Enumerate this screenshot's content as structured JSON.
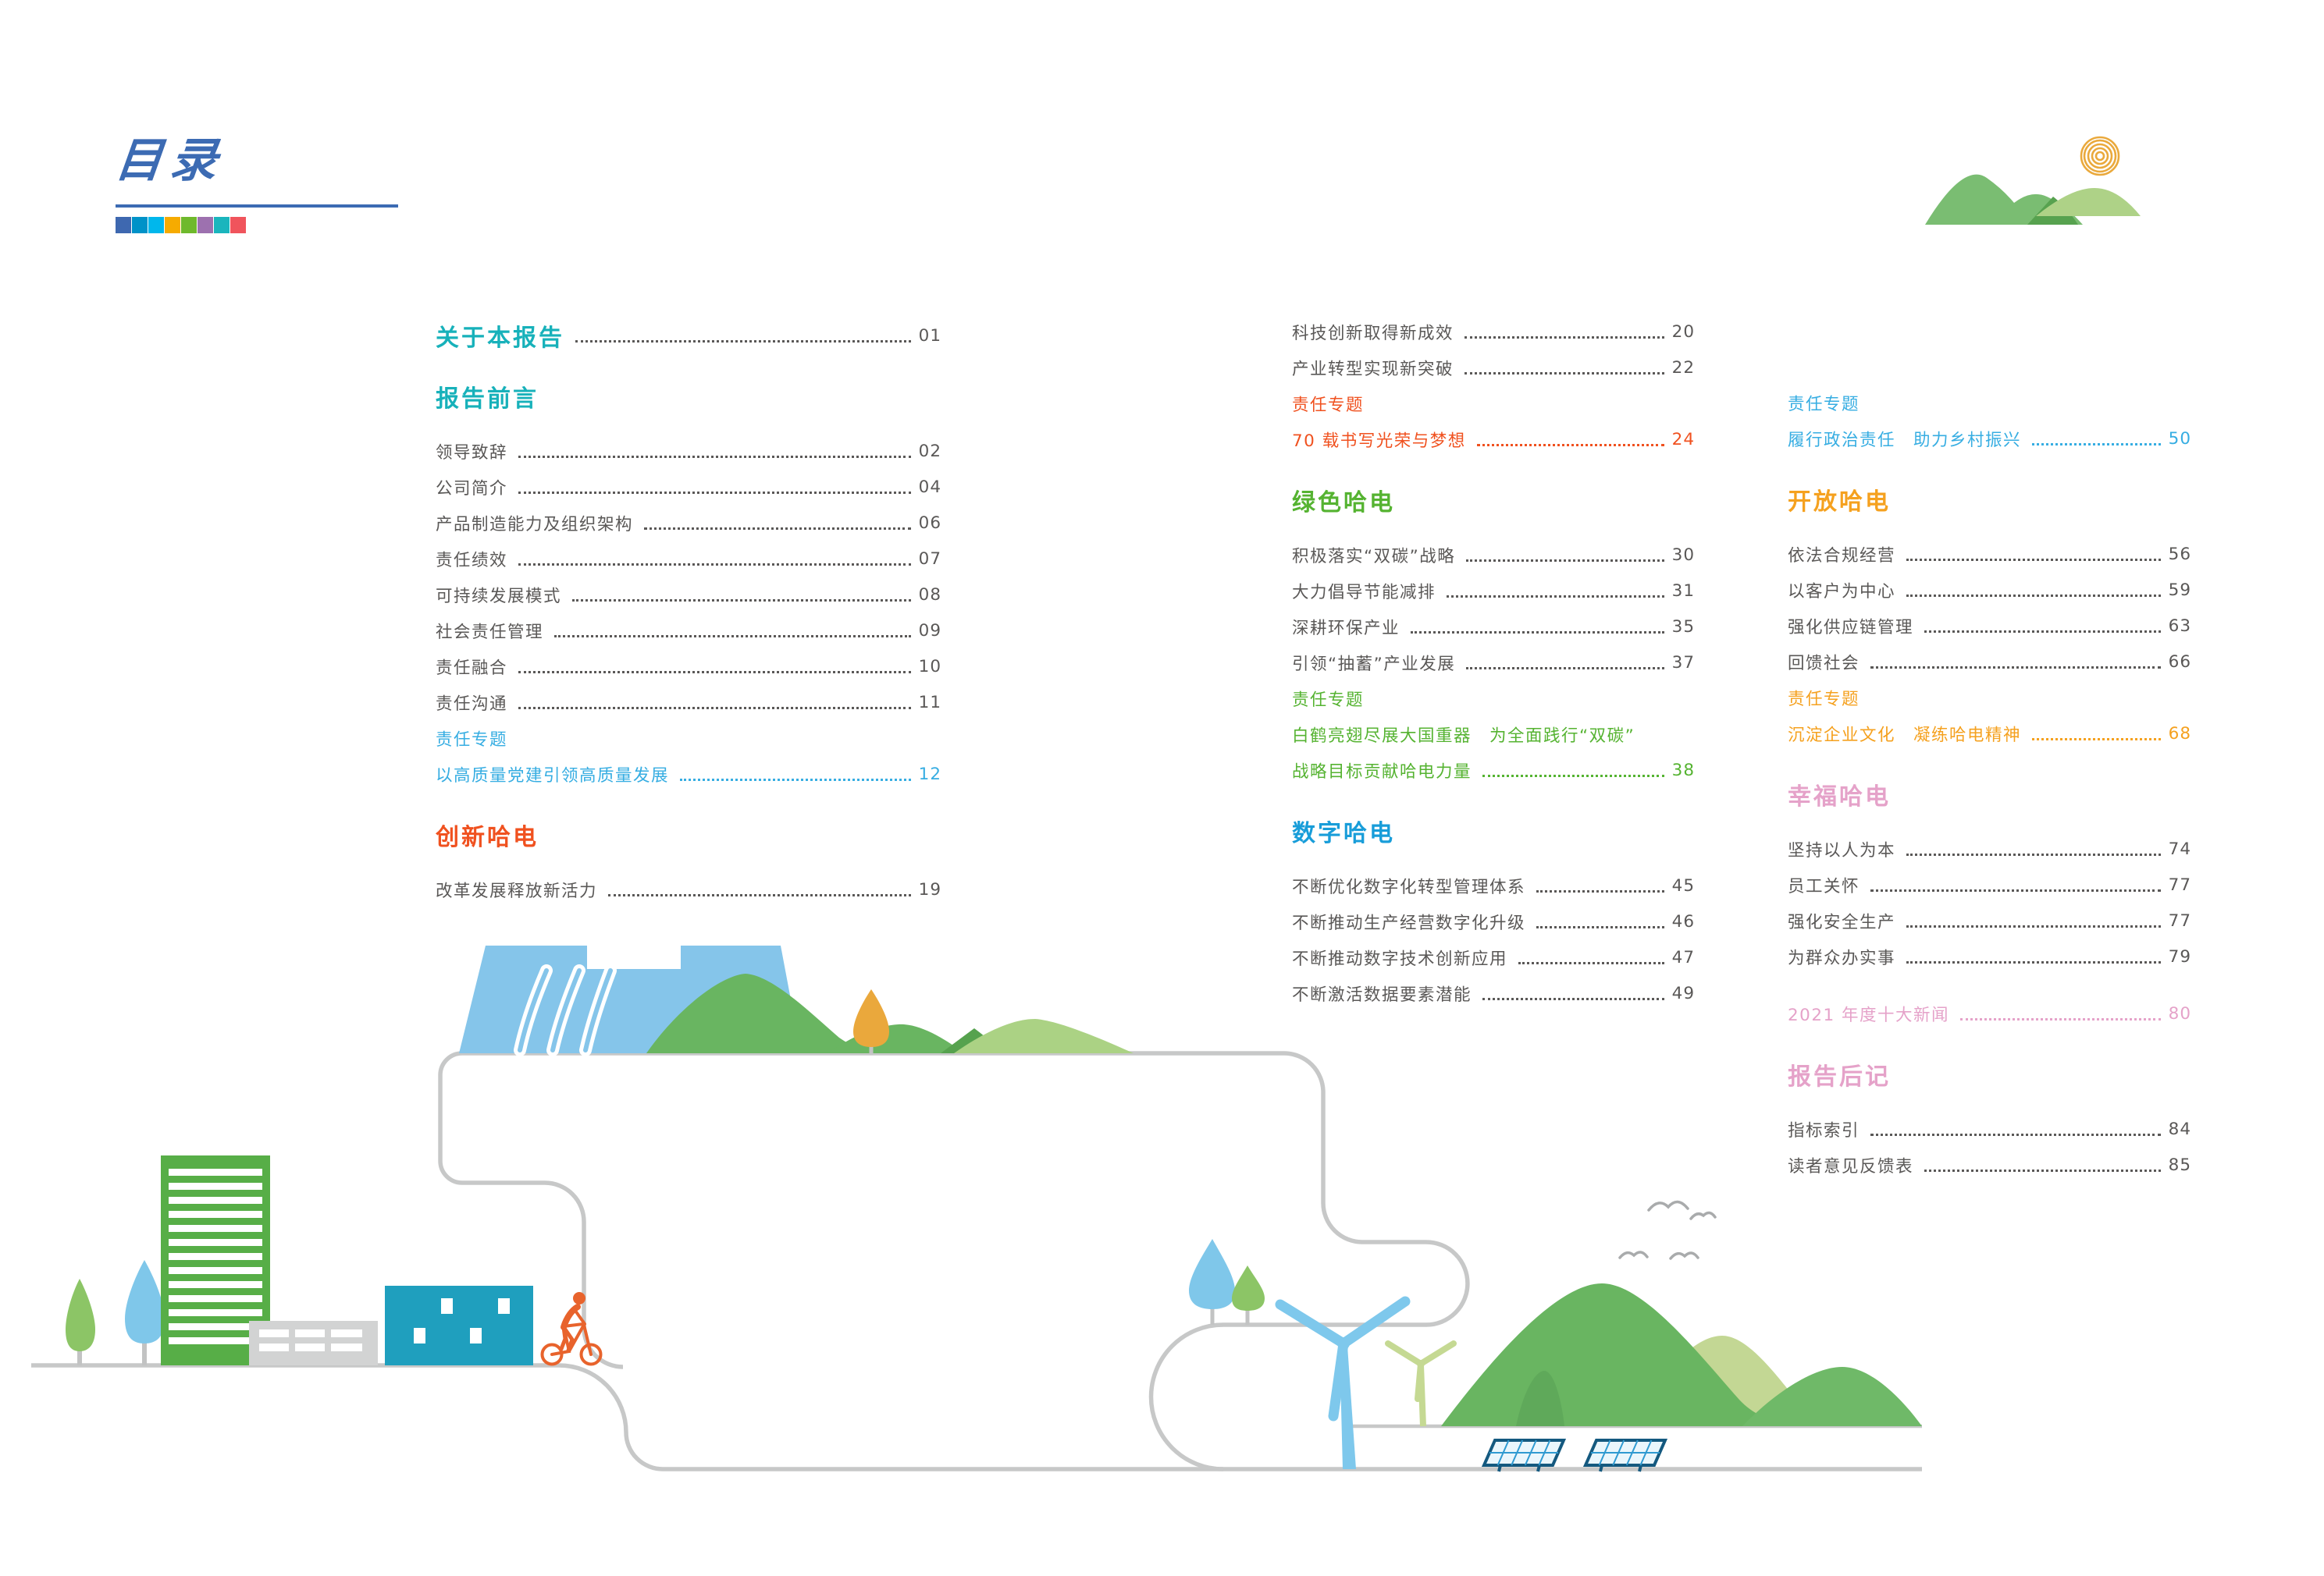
{
  "page": {
    "title": "目录"
  },
  "palette": {
    "title_blue": "#3c6bb3",
    "squares": [
      "#3e68b0",
      "#0092c8",
      "#00b7ec",
      "#f6ab00",
      "#6fb92c",
      "#9d71af",
      "#1ab5bd",
      "#f0545c"
    ],
    "heading_teal": "#17b1ba",
    "heading_red": "#f0511f",
    "heading_green": "#55b331",
    "heading_blue": "#189dd9",
    "heading_orange": "#f5a11f",
    "heading_pink": "#e5a2c9",
    "special_cyan": "#36ade2",
    "body_gray": "#5a5857",
    "road_gray": "#c7c8c8",
    "dam_blue": "#85c5ea",
    "mountain_green": "#69b561",
    "mountain_light": "#abd284",
    "sun_orange": "#eaa93c",
    "cyclist_orange": "#e8632c",
    "building_teal": "#1f9fbe",
    "building_green": "#57ae47"
  },
  "toc": {
    "columns": [
      {
        "items": [
          {
            "t": "关于本报告",
            "p": "01",
            "s": "h-teal",
            "trail": "muted"
          },
          {
            "t": "报告前言",
            "s": "h-teal"
          },
          {
            "t": "领导致辞",
            "p": "02",
            "s": "e"
          },
          {
            "t": "公司简介",
            "p": "04",
            "s": "e"
          },
          {
            "t": "产品制造能力及组织架构",
            "p": "06",
            "s": "e"
          },
          {
            "t": "责任绩效",
            "p": "07",
            "s": "e"
          },
          {
            "t": "可持续发展模式",
            "p": "08",
            "s": "e"
          },
          {
            "t": "社会责任管理",
            "p": "09",
            "s": "e"
          },
          {
            "t": "责任融合",
            "p": "10",
            "s": "e"
          },
          {
            "t": "责任沟通",
            "p": "11",
            "s": "e"
          },
          {
            "t": "责任专题",
            "s": "sp-cyan"
          },
          {
            "t": "以高质量党建引领高质量发展",
            "p": "12",
            "s": "sp-cyan"
          },
          {
            "t": "创新哈电",
            "s": "h-red"
          },
          {
            "t": "改革发展释放新活力",
            "p": "19",
            "s": "e"
          }
        ]
      },
      {
        "items": [
          {
            "t": "科技创新取得新成效",
            "p": "20",
            "s": "e"
          },
          {
            "t": "产业转型实现新突破",
            "p": "22",
            "s": "e"
          },
          {
            "t": "责任专题",
            "s": "sp-red"
          },
          {
            "t": "70 载书写光荣与梦想",
            "p": "24",
            "s": "sp-red"
          },
          {
            "t": "绿色哈电",
            "s": "h-green"
          },
          {
            "t": "积极落实“双碳”战略",
            "p": "30",
            "s": "e"
          },
          {
            "t": "大力倡导节能减排",
            "p": "31",
            "s": "e"
          },
          {
            "t": "深耕环保产业",
            "p": "35",
            "s": "e"
          },
          {
            "t": "引领“抽蓄”产业发展",
            "p": "37",
            "s": "e"
          },
          {
            "t": "责任专题",
            "s": "sp-green"
          },
          {
            "t": "白鹤亮翅尽展大国重器　为全面践行“双碳”",
            "s": "sp-green"
          },
          {
            "t": "战略目标贡献哈电力量",
            "p": "38",
            "s": "sp-green"
          },
          {
            "t": "数字哈电",
            "s": "h-blue"
          },
          {
            "t": "不断优化数字化转型管理体系",
            "p": "45",
            "s": "e"
          },
          {
            "t": "不断推动生产经营数字化升级",
            "p": "46",
            "s": "e"
          },
          {
            "t": "不断推动数字技术创新应用",
            "p": "47",
            "s": "e"
          },
          {
            "t": "不断激活数据要素潜能",
            "p": "49",
            "s": "e"
          }
        ]
      },
      {
        "items": [
          {
            "t": "责任专题",
            "s": "sp-lblue"
          },
          {
            "t": "履行政治责任　助力乡村振兴",
            "p": "50",
            "s": "sp-lblue"
          },
          {
            "t": "开放哈电",
            "s": "h-orange"
          },
          {
            "t": "依法合规经营",
            "p": "56",
            "s": "e"
          },
          {
            "t": "以客户为中心",
            "p": "59",
            "s": "e"
          },
          {
            "t": "强化供应链管理",
            "p": "63",
            "s": "e"
          },
          {
            "t": "回馈社会",
            "p": "66",
            "s": "e"
          },
          {
            "t": "责任专题",
            "s": "sp-orange"
          },
          {
            "t": "沉淀企业文化　凝练哈电精神",
            "p": "68",
            "s": "sp-orange"
          },
          {
            "t": "幸福哈电",
            "s": "h-pink"
          },
          {
            "t": "坚持以人为本",
            "p": "74",
            "s": "e"
          },
          {
            "t": "员工关怀",
            "p": "77",
            "s": "e"
          },
          {
            "t": "强化安全生产",
            "p": "77",
            "s": "e"
          },
          {
            "t": "为群众办实事",
            "p": "79",
            "s": "e"
          },
          {
            "t": "2021 年度十大新闻",
            "p": "80",
            "s": "sp-pink",
            "gap": true
          },
          {
            "t": "报告后记",
            "s": "h-pink"
          },
          {
            "t": "指标索引",
            "p": "84",
            "s": "e"
          },
          {
            "t": "读者意见反馈表",
            "p": "85",
            "s": "e"
          }
        ]
      }
    ]
  }
}
